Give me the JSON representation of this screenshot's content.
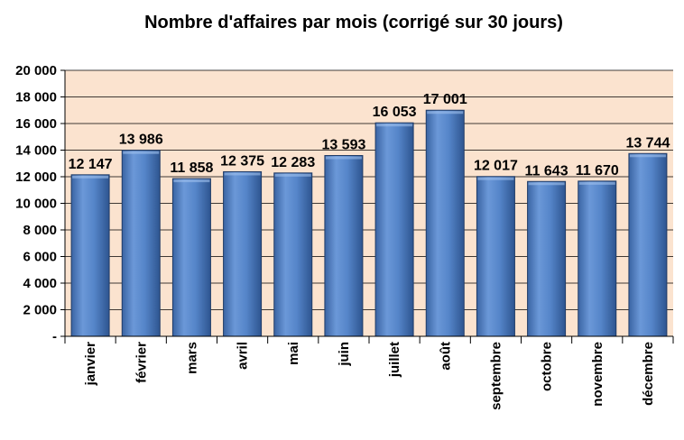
{
  "chart_data": {
    "type": "bar",
    "title": "Nombre d'affaires par mois (corrigé sur 30 jours)",
    "categories": [
      "janvier",
      "février",
      "mars",
      "avril",
      "mai",
      "juin",
      "juillet",
      "août",
      "septembre",
      "octobre",
      "novembre",
      "décembre"
    ],
    "values": [
      12147,
      13986,
      11858,
      12375,
      12283,
      13593,
      16053,
      17001,
      12017,
      11643,
      11670,
      13744
    ],
    "value_labels": [
      "12 147",
      "13 986",
      "11 858",
      "12 375",
      "12 283",
      "13 593",
      "16 053",
      "17 001",
      "12 017",
      "11 643",
      "11 670",
      "13 744"
    ],
    "ylim": [
      0,
      20000
    ],
    "yticks": [
      0,
      2000,
      4000,
      6000,
      8000,
      10000,
      12000,
      14000,
      16000,
      18000,
      20000
    ],
    "ytick_labels": [
      "-",
      "2 000",
      "4 000",
      "6 000",
      "8 000",
      "10 000",
      "12 000",
      "14 000",
      "16 000",
      "18 000",
      "20 000"
    ],
    "grid": "horizontal",
    "legend": "none",
    "colors": {
      "plot_background": "#fbe3cf",
      "bar_fill": "#4f7fc2",
      "bar_edge": "#1f3b66",
      "gridline": "#000000"
    }
  }
}
